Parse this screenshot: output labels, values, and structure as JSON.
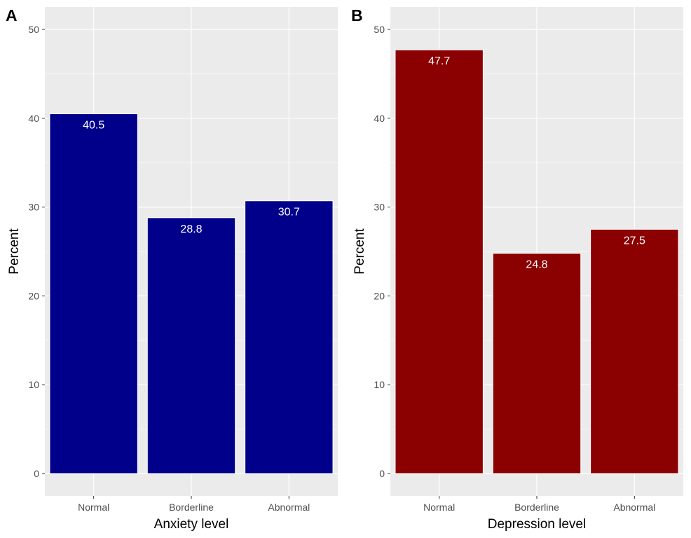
{
  "chart_data": [
    {
      "type": "bar",
      "panel_tag": "A",
      "categories": [
        "Normal",
        "Borderline",
        "Abnormal"
      ],
      "values": [
        40.5,
        28.8,
        30.7
      ],
      "value_labels": [
        "40.5",
        "28.8",
        "30.7"
      ],
      "title": "",
      "xlabel": "Anxiety level",
      "ylabel": "Percent",
      "ylim": [
        0,
        52
      ],
      "yticks": [
        0,
        10,
        20,
        30,
        40,
        50
      ],
      "ytick_labels": [
        "0",
        "10",
        "20",
        "30",
        "40",
        "50"
      ],
      "grid": true,
      "bar_color": "#00008B",
      "panel_background": "#EBEBEB"
    },
    {
      "type": "bar",
      "panel_tag": "B",
      "categories": [
        "Normal",
        "Borderline",
        "Abnormal"
      ],
      "values": [
        47.7,
        24.8,
        27.5
      ],
      "value_labels": [
        "47.7",
        "24.8",
        "27.5"
      ],
      "title": "",
      "xlabel": "Depression level",
      "ylabel": "Percent",
      "ylim": [
        0,
        52
      ],
      "yticks": [
        0,
        10,
        20,
        30,
        40,
        50
      ],
      "ytick_labels": [
        "0",
        "10",
        "20",
        "30",
        "40",
        "50"
      ],
      "grid": true,
      "bar_color": "#8B0000",
      "panel_background": "#EBEBEB"
    }
  ]
}
